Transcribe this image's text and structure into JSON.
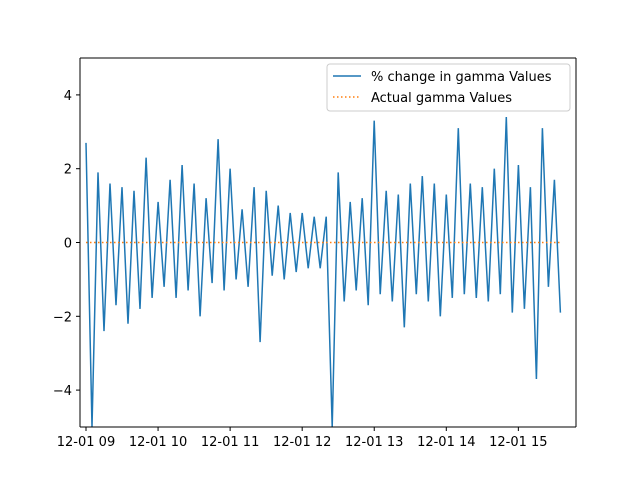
{
  "chart_data": {
    "type": "line",
    "title": "",
    "xlabel": "",
    "ylabel": "",
    "x_range": [
      "12-01 08:55",
      "15:48"
    ],
    "ylim": [
      -5,
      5
    ],
    "grid": false,
    "legend_position": "top-right",
    "x_ticks": [
      {
        "time": "09:00",
        "label": "12-01 09"
      },
      {
        "time": "10:00",
        "label": "12-01 10"
      },
      {
        "time": "11:00",
        "label": "12-01 11"
      },
      {
        "time": "12:00",
        "label": "12-01 12"
      },
      {
        "time": "13:00",
        "label": "12-01 13"
      },
      {
        "time": "14:00",
        "label": "12-01 14"
      },
      {
        "time": "15:00",
        "label": "12-01 15"
      }
    ],
    "y_ticks": [
      {
        "value": -4,
        "label": "−4"
      },
      {
        "value": -2,
        "label": "−2"
      },
      {
        "value": 0,
        "label": "0"
      },
      {
        "value": 2,
        "label": "2"
      },
      {
        "value": 4,
        "label": "4"
      }
    ],
    "series": [
      {
        "name": "% change in gamma Values",
        "color": "#1f77b4",
        "style": "solid",
        "x": [
          "09:00",
          "09:05",
          "09:10",
          "09:15",
          "09:20",
          "09:25",
          "09:30",
          "09:35",
          "09:40",
          "09:45",
          "09:50",
          "09:55",
          "10:00",
          "10:05",
          "10:10",
          "10:15",
          "10:20",
          "10:25",
          "10:30",
          "10:35",
          "10:40",
          "10:45",
          "10:50",
          "10:55",
          "11:00",
          "11:05",
          "11:10",
          "11:15",
          "11:20",
          "11:25",
          "11:30",
          "11:35",
          "11:40",
          "11:45",
          "11:50",
          "11:55",
          "12:00",
          "12:05",
          "12:10",
          "12:15",
          "12:20",
          "12:25",
          "12:30",
          "12:35",
          "12:40",
          "12:45",
          "12:50",
          "12:55",
          "13:00",
          "13:05",
          "13:10",
          "13:15",
          "13:20",
          "13:25",
          "13:30",
          "13:35",
          "13:40",
          "13:45",
          "13:50",
          "13:55",
          "14:00",
          "14:05",
          "14:10",
          "14:15",
          "14:20",
          "14:25",
          "14:30",
          "14:35",
          "14:40",
          "14:45",
          "14:50",
          "14:55",
          "15:00",
          "15:05",
          "15:10",
          "15:15",
          "15:20",
          "15:25",
          "15:30",
          "15:35"
        ],
        "y": [
          2.7,
          -5,
          1.9,
          -2.4,
          1.6,
          -1.7,
          1.5,
          -2.2,
          1.4,
          -1.8,
          2.3,
          -1.5,
          1.1,
          -1.2,
          1.7,
          -1.5,
          2.1,
          -1.3,
          1.6,
          -2.0,
          1.2,
          -1.1,
          2.8,
          -1.3,
          2.0,
          -1.0,
          0.9,
          -1.2,
          1.5,
          -2.7,
          1.4,
          -0.9,
          1.0,
          -1.0,
          0.8,
          -0.8,
          0.8,
          -0.7,
          0.7,
          -0.7,
          0.7,
          -5,
          1.9,
          -1.6,
          1.1,
          -1.3,
          1.2,
          -1.7,
          3.3,
          -1.4,
          1.4,
          -1.6,
          1.3,
          -2.3,
          1.6,
          -1.4,
          1.8,
          -1.6,
          1.6,
          -2.0,
          1.3,
          -1.5,
          3.1,
          -1.4,
          1.6,
          -1.5,
          1.5,
          -1.6,
          2.0,
          -1.4,
          3.4,
          -1.9,
          2.1,
          -1.8,
          1.5,
          -3.7,
          3.1,
          -1.2,
          1.7,
          -1.9
        ]
      },
      {
        "name": "Actual gamma Values",
        "color": "#ff7f0e",
        "style": "dotted",
        "x": [
          "09:00",
          "15:35"
        ],
        "y": [
          0,
          0
        ]
      }
    ]
  }
}
